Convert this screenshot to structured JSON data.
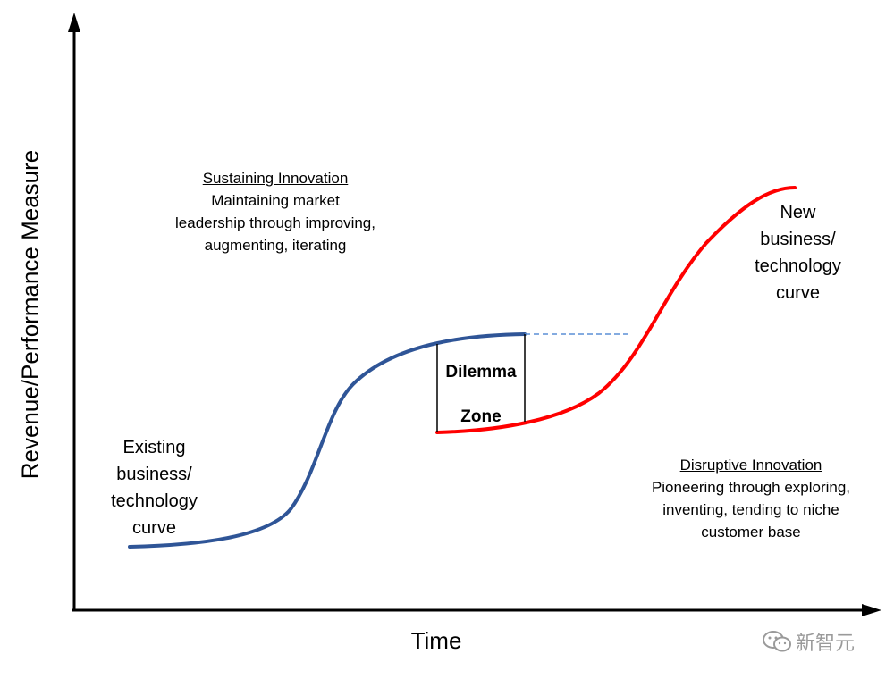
{
  "axes": {
    "y_label": "Revenue/Performance Measure",
    "x_label": "Time"
  },
  "curves": {
    "existing": {
      "label_lines": [
        "Existing",
        "business/",
        "technology",
        "curve"
      ],
      "color": "#2F5597"
    },
    "new": {
      "label_lines": [
        "New",
        "business/",
        "technology",
        "curve"
      ],
      "color": "#FF0000"
    },
    "projection_color": "#5B8FD6"
  },
  "dilemma_zone": {
    "lines": [
      "Dilemma",
      "Zone"
    ]
  },
  "sustaining": {
    "title": "Sustaining Innovation",
    "lines": [
      "Maintaining market",
      "leadership through improving,",
      "augmenting, iterating"
    ]
  },
  "disruptive": {
    "title": "Disruptive Innovation",
    "lines": [
      "Pioneering through exploring,",
      "inventing, tending to niche",
      "customer base"
    ]
  },
  "watermark": {
    "text": "新智元",
    "icon": "wechat-icon"
  }
}
